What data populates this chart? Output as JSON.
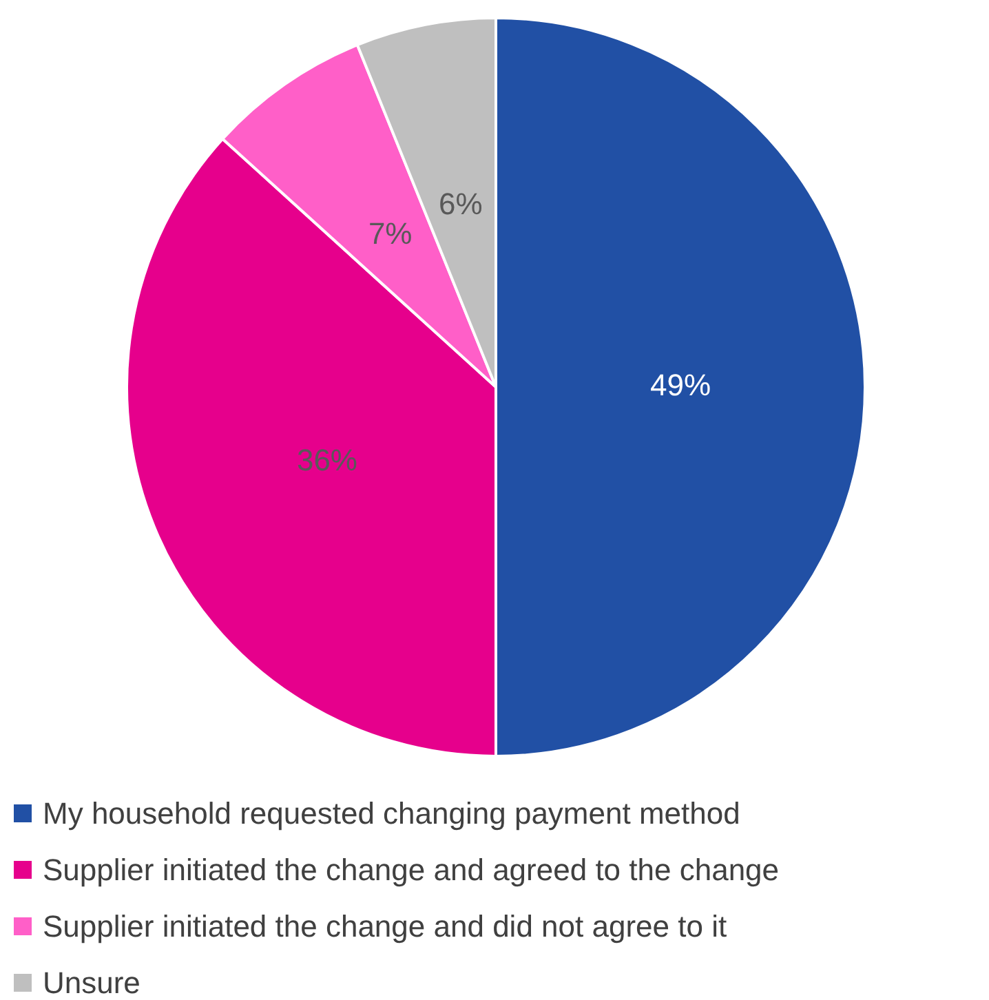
{
  "chart_data": {
    "type": "pie",
    "categories": [
      "My household requested changing payment method",
      "Supplier initiated the change and agreed to the change",
      "Supplier initiated the change and did not agree to it",
      "Unsure"
    ],
    "values": [
      49,
      36,
      7,
      6
    ],
    "colors": [
      "#2150a5",
      "#e6008c",
      "#ff5fc8",
      "#bfbfbf"
    ],
    "value_labels": [
      "49%",
      "36%",
      "7%",
      "6%"
    ],
    "legend": "bottom"
  }
}
